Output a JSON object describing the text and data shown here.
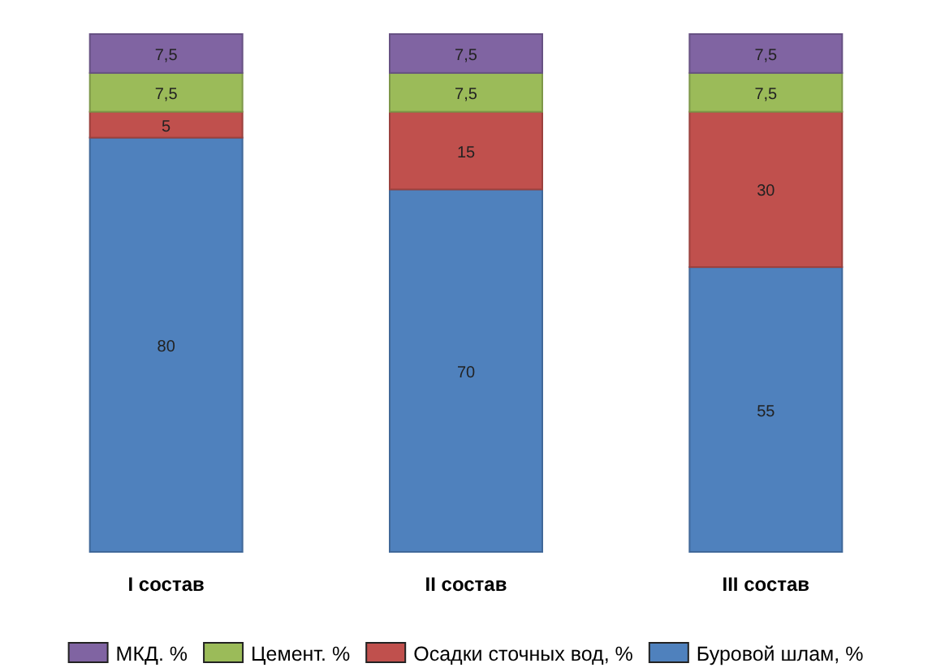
{
  "chart_data": {
    "type": "bar",
    "stacked": true,
    "categories": [
      "I состав",
      "II состав",
      "III состав"
    ],
    "series": [
      {
        "name": "Буровой шлам, %",
        "color": "#4f81bd",
        "values": [
          80,
          70,
          55
        ],
        "value_labels": [
          "80",
          "70",
          "55"
        ]
      },
      {
        "name": "Осадки сточных вод, %",
        "color": "#c0504d",
        "values": [
          5,
          15,
          30
        ],
        "value_labels": [
          "5",
          "15",
          "30"
        ]
      },
      {
        "name": "Цемент. %",
        "color": "#9bbb59",
        "values": [
          7.5,
          7.5,
          7.5
        ],
        "value_labels": [
          "7,5",
          "7,5",
          "7,5"
        ]
      },
      {
        "name": "МКД. %",
        "color": "#8064a2",
        "values": [
          7.5,
          7.5,
          7.5
        ],
        "value_labels": [
          "7,5",
          "7,5",
          "7,5"
        ]
      }
    ],
    "legend": "bottom"
  }
}
